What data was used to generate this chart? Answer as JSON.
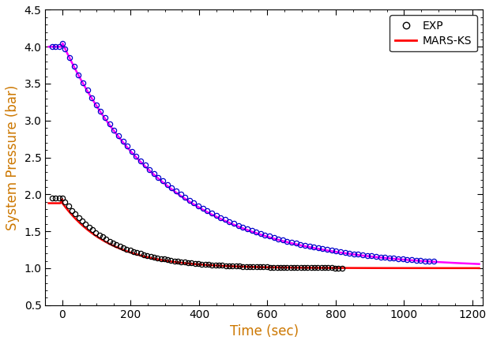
{
  "title": "",
  "xlabel": "Time (sec)",
  "ylabel": "System Pressure (bar)",
  "xlim": [
    -50,
    1230
  ],
  "ylim": [
    0.5,
    4.5
  ],
  "xticks": [
    0,
    200,
    400,
    600,
    800,
    1000,
    1200
  ],
  "yticks": [
    0.5,
    1.0,
    1.5,
    2.0,
    2.5,
    3.0,
    3.5,
    4.0,
    4.5
  ],
  "legend_labels": [
    "EXP",
    "MARS-KS"
  ],
  "exp_color_2bar": "#000000",
  "exp_color_4bar": "#0000cc",
  "sim_color_2bar": "#ff0000",
  "sim_color_4bar": "#ff00ff",
  "label_color": "#cc7700",
  "marker": "o",
  "markersize": 4.5,
  "linewidth": 1.8,
  "figsize": [
    6.24,
    4.36
  ],
  "dpi": 100
}
